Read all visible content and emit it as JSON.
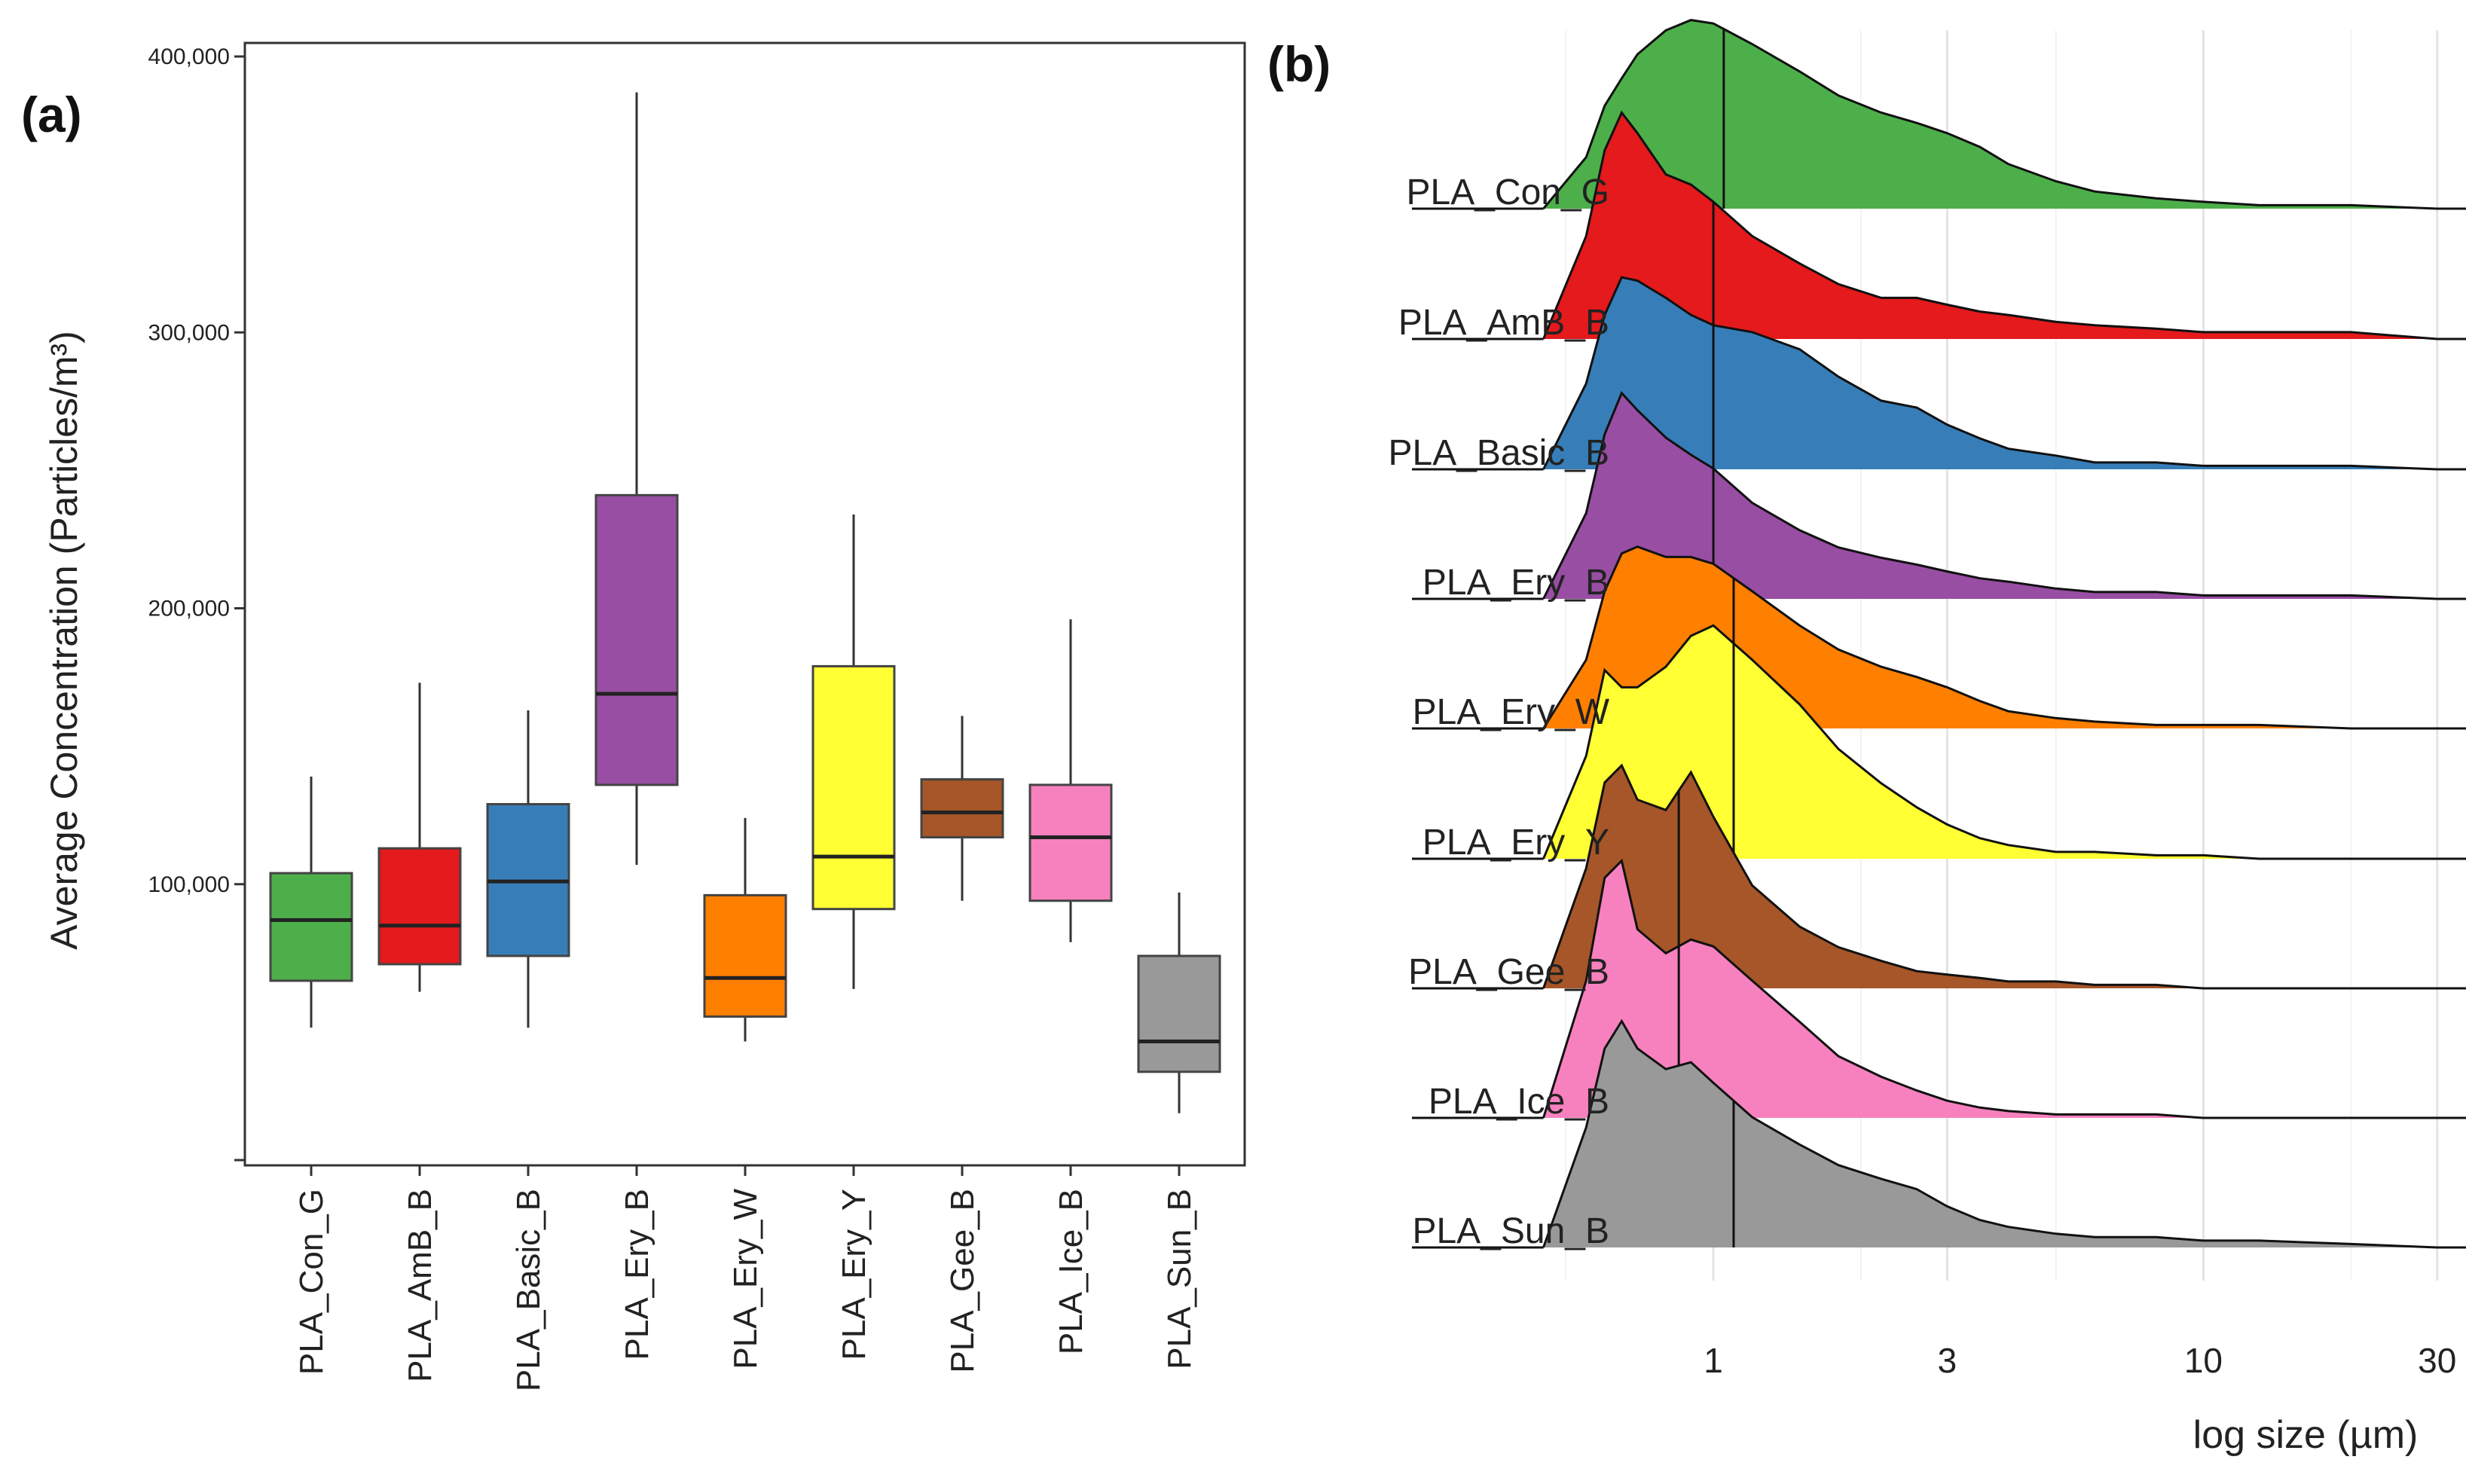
{
  "chart_data": [
    {
      "panel": "(a)",
      "type": "box",
      "ylabel": "Average Concentration (Particles/m³)",
      "ylim": [
        0,
        400000
      ],
      "yticks": [
        100000,
        200000,
        300000,
        400000
      ],
      "ytick_labels": [
        "100,000",
        "200,000",
        "300,000",
        "400,000"
      ],
      "categories": [
        "PLA_Con_G",
        "PLA_AmB_B",
        "PLA_Basic_B",
        "PLA_Ery_B",
        "PLA_Ery_W",
        "PLA_Ery_Y",
        "PLA_Gee_B",
        "PLA_Ice_B",
        "PLA_Sun_B"
      ],
      "colors": [
        "#4daf4a",
        "#e41a1c",
        "#377eb8",
        "#984ea3",
        "#ff7f00",
        "#ffff33",
        "#a65628",
        "#f781bf",
        "#999999"
      ],
      "boxes": [
        {
          "whisker_low": 48000,
          "q1": 65000,
          "median": 87000,
          "q3": 104000,
          "whisker_high": 139000
        },
        {
          "whisker_low": 61000,
          "q1": 71000,
          "median": 85000,
          "q3": 113000,
          "whisker_high": 173000
        },
        {
          "whisker_low": 48000,
          "q1": 74000,
          "median": 101000,
          "q3": 129000,
          "whisker_high": 163000
        },
        {
          "whisker_low": 107000,
          "q1": 136000,
          "median": 169000,
          "q3": 241000,
          "whisker_high": 387000
        },
        {
          "whisker_low": 43000,
          "q1": 52000,
          "median": 66000,
          "q3": 96000,
          "whisker_high": 124000
        },
        {
          "whisker_low": 62000,
          "q1": 91000,
          "median": 110000,
          "q3": 179000,
          "whisker_high": 234000
        },
        {
          "whisker_low": 94000,
          "q1": 117000,
          "median": 126000,
          "q3": 138000,
          "whisker_high": 161000
        },
        {
          "whisker_low": 79000,
          "q1": 94000,
          "median": 117000,
          "q3": 136000,
          "whisker_high": 196000
        },
        {
          "whisker_low": 17000,
          "q1": 32000,
          "median": 43000,
          "q3": 74000,
          "whisker_high": 97000
        }
      ]
    },
    {
      "panel": "(b)",
      "type": "ridgeline",
      "xlabel": "log size (µm)",
      "xscale": "log",
      "xlim": [
        0.3,
        40
      ],
      "xticks": [
        1,
        3,
        10,
        30
      ],
      "xtick_labels": [
        "1",
        "3",
        "10",
        "30"
      ],
      "ridge_max": 0.38,
      "x_grid": [
        0.45,
        0.55,
        0.6,
        0.65,
        0.7,
        0.8,
        0.9,
        1.0,
        1.2,
        1.5,
        1.8,
        2.2,
        2.6,
        3.0,
        3.5,
        4.0,
        5.0,
        6.0,
        8.0,
        10.0,
        13.0,
        20.0,
        30.0,
        40.0
      ],
      "series": [
        {
          "name": "PLA_Con_G",
          "color": "#4daf4a",
          "median": 1.05,
          "density": [
            0.0,
            0.15,
            0.3,
            0.38,
            0.45,
            0.52,
            0.55,
            0.54,
            0.48,
            0.4,
            0.33,
            0.28,
            0.25,
            0.22,
            0.18,
            0.13,
            0.08,
            0.05,
            0.03,
            0.02,
            0.01,
            0.01,
            0.0,
            0.0
          ]
        },
        {
          "name": "PLA_AmB_B",
          "color": "#e41a1c",
          "median": 1.0,
          "density": [
            0.0,
            0.3,
            0.55,
            0.66,
            0.6,
            0.48,
            0.45,
            0.4,
            0.3,
            0.22,
            0.16,
            0.12,
            0.12,
            0.1,
            0.08,
            0.07,
            0.05,
            0.04,
            0.03,
            0.02,
            0.02,
            0.02,
            0.0,
            0.0
          ]
        },
        {
          "name": "PLA_Basic_B",
          "color": "#377eb8",
          "median": 1.0,
          "density": [
            0.0,
            0.25,
            0.45,
            0.56,
            0.55,
            0.5,
            0.45,
            0.42,
            0.4,
            0.35,
            0.27,
            0.2,
            0.18,
            0.13,
            0.09,
            0.06,
            0.04,
            0.02,
            0.02,
            0.01,
            0.01,
            0.01,
            0.0,
            0.0
          ]
        },
        {
          "name": "PLA_Ery_B",
          "color": "#984ea3",
          "median": 1.0,
          "density": [
            0.0,
            0.25,
            0.48,
            0.6,
            0.55,
            0.47,
            0.42,
            0.38,
            0.28,
            0.2,
            0.15,
            0.12,
            0.1,
            0.08,
            0.06,
            0.05,
            0.03,
            0.02,
            0.02,
            0.01,
            0.01,
            0.01,
            0.0,
            0.0
          ]
        },
        {
          "name": "PLA_Ery_W",
          "color": "#ff7f00",
          "median": 1.1,
          "density": [
            0.0,
            0.2,
            0.4,
            0.51,
            0.53,
            0.5,
            0.5,
            0.48,
            0.4,
            0.3,
            0.23,
            0.18,
            0.15,
            0.12,
            0.08,
            0.05,
            0.03,
            0.02,
            0.01,
            0.01,
            0.01,
            0.0,
            0.0,
            0.0
          ]
        },
        {
          "name": "PLA_Ery_Y",
          "color": "#ffff33",
          "median": 1.1,
          "density": [
            0.0,
            0.3,
            0.55,
            0.5,
            0.5,
            0.56,
            0.65,
            0.68,
            0.58,
            0.45,
            0.32,
            0.22,
            0.15,
            0.1,
            0.06,
            0.04,
            0.02,
            0.02,
            0.01,
            0.01,
            0.0,
            0.0,
            0.0,
            0.0
          ]
        },
        {
          "name": "PLA_Gee_B",
          "color": "#a65628",
          "median": 0.85,
          "density": [
            0.0,
            0.35,
            0.6,
            0.65,
            0.55,
            0.52,
            0.63,
            0.5,
            0.3,
            0.18,
            0.12,
            0.08,
            0.05,
            0.04,
            0.03,
            0.02,
            0.02,
            0.01,
            0.01,
            0.0,
            0.0,
            0.0,
            0.0,
            0.0
          ]
        },
        {
          "name": "PLA_Ice_B",
          "color": "#f781bf",
          "median": 0.85,
          "density": [
            0.0,
            0.4,
            0.7,
            0.75,
            0.55,
            0.48,
            0.52,
            0.5,
            0.4,
            0.28,
            0.18,
            0.12,
            0.08,
            0.05,
            0.03,
            0.02,
            0.01,
            0.01,
            0.01,
            0.0,
            0.0,
            0.0,
            0.0,
            0.0
          ]
        },
        {
          "name": "PLA_Sun_B",
          "color": "#999999",
          "median": 1.1,
          "density": [
            0.0,
            0.35,
            0.58,
            0.66,
            0.58,
            0.52,
            0.54,
            0.48,
            0.38,
            0.3,
            0.24,
            0.2,
            0.17,
            0.12,
            0.08,
            0.06,
            0.04,
            0.03,
            0.03,
            0.02,
            0.02,
            0.01,
            0.0,
            0.0
          ]
        }
      ]
    }
  ]
}
